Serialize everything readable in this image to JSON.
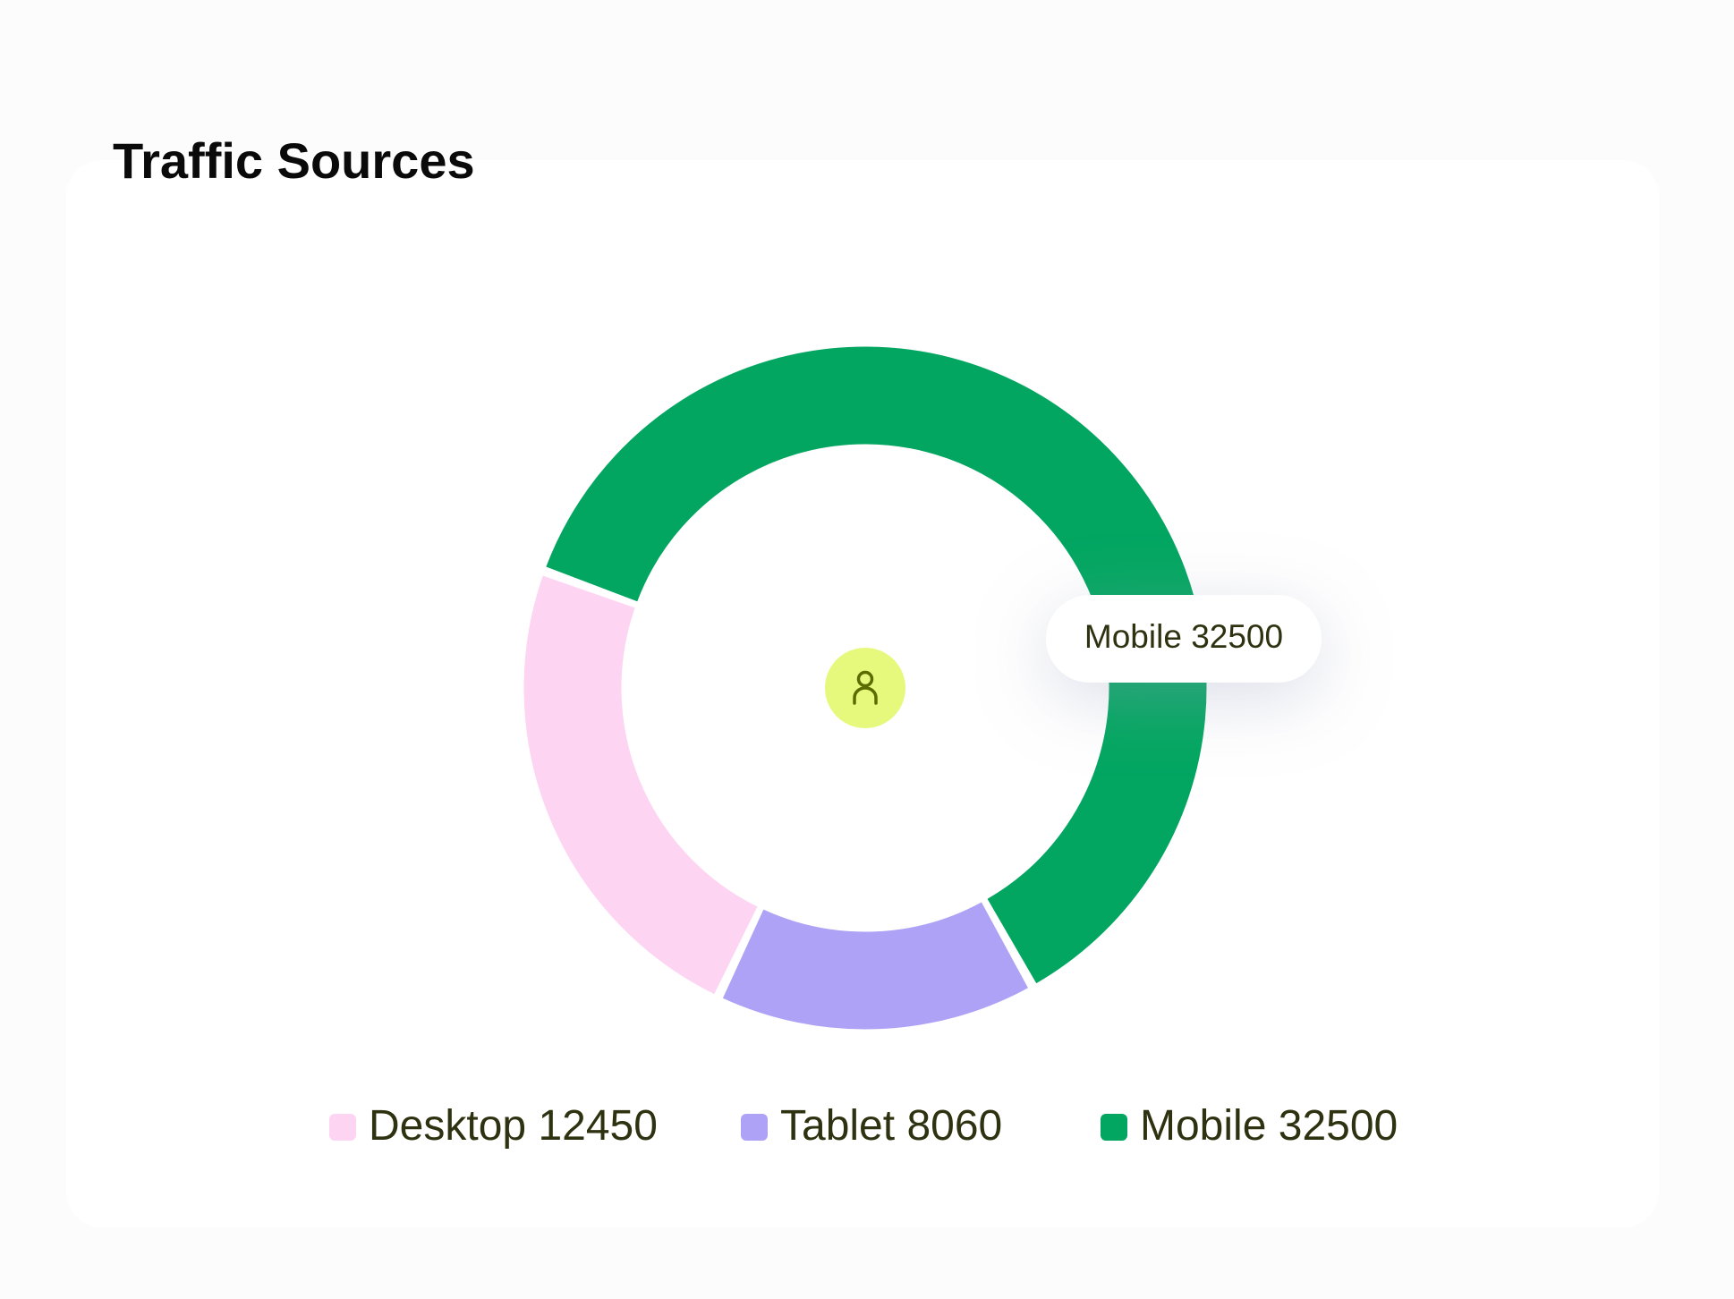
{
  "chart_data": {
    "type": "pie",
    "title": "Traffic Sources",
    "categories": [
      "Desktop",
      "Tablet",
      "Mobile"
    ],
    "values": [
      12450,
      8060,
      32500
    ],
    "colors": [
      "#fdd5f3",
      "#aea2f6",
      "#02a660"
    ],
    "tooltip": "Mobile"
  }
}
